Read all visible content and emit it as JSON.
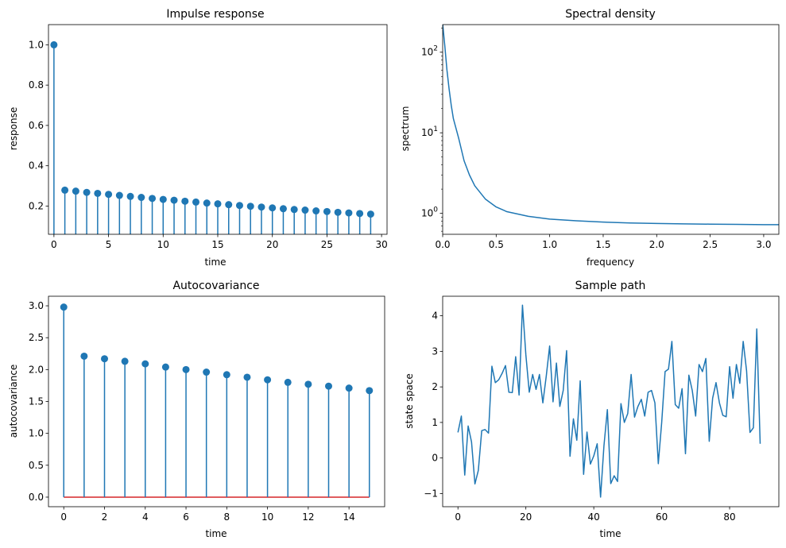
{
  "chart_data": [
    {
      "type": "stem",
      "title": "Impulse response",
      "xlabel": "time",
      "ylabel": "response",
      "xlim": [
        -0.5,
        30.5
      ],
      "ylim": [
        0.06,
        1.1
      ],
      "xticks": [
        0,
        5,
        10,
        15,
        20,
        25,
        30
      ],
      "yticks": [
        0.2,
        0.4,
        0.6,
        0.8,
        1.0
      ],
      "ytick_labels": [
        "0.2",
        "0.4",
        "0.6",
        "0.8",
        "1.0"
      ],
      "color": "#1f77b4",
      "x": [
        0,
        1,
        2,
        3,
        4,
        5,
        6,
        7,
        8,
        9,
        10,
        11,
        12,
        13,
        14,
        15,
        16,
        17,
        18,
        19,
        20,
        21,
        22,
        23,
        24,
        25,
        26,
        27,
        28,
        29
      ],
      "y": [
        1.0,
        0.279,
        0.274,
        0.268,
        0.263,
        0.258,
        0.253,
        0.248,
        0.243,
        0.238,
        0.233,
        0.229,
        0.224,
        0.22,
        0.215,
        0.211,
        0.207,
        0.203,
        0.199,
        0.195,
        0.191,
        0.187,
        0.183,
        0.18,
        0.176,
        0.173,
        0.169,
        0.166,
        0.163,
        0.16
      ]
    },
    {
      "type": "line",
      "title": "Spectral density",
      "xlabel": "frequency",
      "ylabel": "spectrum",
      "yscale": "log",
      "xlim": [
        0,
        3.1416
      ],
      "ylim": [
        0.55,
        220
      ],
      "xticks": [
        0.0,
        0.5,
        1.0,
        1.5,
        2.0,
        2.5,
        3.0
      ],
      "xtick_labels": [
        "0.0",
        "0.5",
        "1.0",
        "1.5",
        "2.0",
        "2.5",
        "3.0"
      ],
      "yticks": [
        1,
        10,
        100
      ],
      "ytick_labels": [
        "10^0",
        "10^1",
        "10^2"
      ],
      "color": "#1f77b4",
      "x": [
        0.0,
        0.02,
        0.04,
        0.06,
        0.08,
        0.1,
        0.15,
        0.2,
        0.25,
        0.3,
        0.4,
        0.5,
        0.6,
        0.8,
        1.0,
        1.25,
        1.5,
        1.75,
        2.0,
        2.25,
        2.5,
        2.75,
        3.0,
        3.1416
      ],
      "y": [
        225,
        120,
        60,
        35,
        22,
        15,
        8.5,
        4.5,
        3.0,
        2.2,
        1.5,
        1.2,
        1.05,
        0.92,
        0.85,
        0.81,
        0.78,
        0.76,
        0.75,
        0.74,
        0.735,
        0.73,
        0.725,
        0.725
      ]
    },
    {
      "type": "stem",
      "title": "Autocovariance",
      "xlabel": "time",
      "ylabel": "autocovariance",
      "xlim": [
        -0.75,
        15.75
      ],
      "ylim": [
        -0.15,
        3.15
      ],
      "xticks": [
        0,
        2,
        4,
        6,
        8,
        10,
        12,
        14
      ],
      "yticks": [
        0.0,
        0.5,
        1.0,
        1.5,
        2.0,
        2.5,
        3.0
      ],
      "ytick_labels": [
        "0.0",
        "0.5",
        "1.0",
        "1.5",
        "2.0",
        "2.5",
        "3.0"
      ],
      "color": "#1f77b4",
      "baseline_color": "#d62728",
      "x": [
        0,
        1,
        2,
        3,
        4,
        5,
        6,
        7,
        8,
        9,
        10,
        11,
        12,
        13,
        14,
        15
      ],
      "y": [
        2.98,
        2.21,
        2.17,
        2.13,
        2.09,
        2.04,
        2.0,
        1.96,
        1.92,
        1.88,
        1.84,
        1.8,
        1.77,
        1.74,
        1.71,
        1.67
      ]
    },
    {
      "type": "line",
      "title": "Sample path",
      "xlabel": "time",
      "ylabel": "state space",
      "xlim": [
        -4.5,
        94.5
      ],
      "ylim": [
        -1.37,
        4.55
      ],
      "xticks": [
        0,
        20,
        40,
        60,
        80
      ],
      "yticks": [
        -1,
        0,
        1,
        2,
        3,
        4
      ],
      "ytick_labels": [
        "−1",
        "0",
        "1",
        "2",
        "3",
        "4"
      ],
      "color": "#1f77b4",
      "x": [
        0,
        1,
        2,
        3,
        4,
        5,
        6,
        7,
        8,
        9,
        10,
        11,
        12,
        13,
        14,
        15,
        16,
        17,
        18,
        19,
        20,
        21,
        22,
        23,
        24,
        25,
        26,
        27,
        28,
        29,
        30,
        31,
        32,
        33,
        34,
        35,
        36,
        37,
        38,
        39,
        40,
        41,
        42,
        43,
        44,
        45,
        46,
        47,
        48,
        49,
        50,
        51,
        52,
        53,
        54,
        55,
        56,
        57,
        58,
        59,
        60,
        61,
        62,
        63,
        64,
        65,
        66,
        67,
        68,
        69,
        70,
        71,
        72,
        73,
        74,
        75,
        76,
        77,
        78,
        79,
        80,
        81,
        82,
        83,
        84,
        85,
        86,
        87,
        88,
        89
      ],
      "y": [
        0.72,
        1.18,
        -0.48,
        0.9,
        0.45,
        -0.73,
        -0.35,
        0.77,
        0.8,
        0.7,
        2.58,
        2.12,
        2.2,
        2.38,
        2.6,
        1.85,
        1.84,
        2.85,
        1.77,
        4.3,
        2.9,
        1.85,
        2.35,
        1.93,
        2.35,
        1.55,
        2.3,
        3.15,
        1.58,
        2.67,
        1.45,
        1.9,
        3.02,
        0.05,
        1.1,
        0.5,
        2.17,
        -0.46,
        0.73,
        -0.17,
        0.06,
        0.4,
        -1.1,
        0.35,
        1.36,
        -0.72,
        -0.5,
        -0.66,
        1.53,
        1.0,
        1.25,
        2.35,
        1.15,
        1.45,
        1.65,
        1.18,
        1.85,
        1.9,
        1.55,
        -0.16,
        1.0,
        2.43,
        2.5,
        3.28,
        1.5,
        1.4,
        1.95,
        0.12,
        2.33,
        1.9,
        1.18,
        2.63,
        2.43,
        2.8,
        0.47,
        1.68,
        2.12,
        1.55,
        1.2,
        1.16,
        2.57,
        1.68,
        2.63,
        2.1,
        3.28,
        2.45,
        0.72,
        0.85,
        3.63,
        0.4
      ]
    }
  ]
}
